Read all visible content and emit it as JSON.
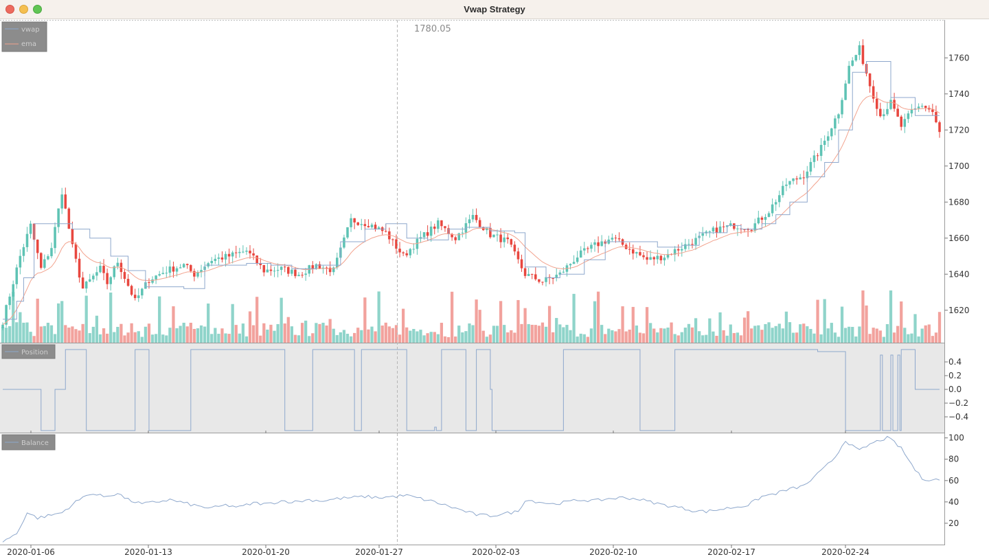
{
  "window": {
    "title": "Vwap Strategy",
    "buttons": [
      "close",
      "minimize",
      "maximize"
    ]
  },
  "crosshair": {
    "value_label": "1780.05",
    "x_date": "2020-01-27"
  },
  "colors": {
    "up_candle": "#5ec3b4",
    "down_candle": "#e8473f",
    "up_volume": "#8fd4ca",
    "down_volume": "#f2a29d",
    "vwap": "#8da7cc",
    "ema": "#f2a28d",
    "position": "#8da7cc",
    "balance": "#8da7cc",
    "legend_bg": "#8c8c8c",
    "position_bg": "#e8e8e8"
  },
  "chart_data": [
    {
      "type": "candlestick",
      "title": "",
      "legend": [
        "vwap",
        "ema"
      ],
      "legend_placement": "top-left",
      "ylim": [
        1602,
        1778
      ],
      "y_ticks": [
        "1620",
        "1640",
        "1660",
        "1680",
        "1700",
        "1720",
        "1740",
        "1760"
      ],
      "x_ticks": [
        "2020-01-06",
        "2020-01-13",
        "2020-01-20",
        "2020-01-27",
        "2020-02-03",
        "2020-02-10",
        "2020-02-17",
        "2020-02-24"
      ],
      "close_anchors": [
        [
          0,
          1614
        ],
        [
          5,
          1650
        ],
        [
          8,
          1667
        ],
        [
          11,
          1643
        ],
        [
          14,
          1655
        ],
        [
          17,
          1686
        ],
        [
          20,
          1655
        ],
        [
          23,
          1632
        ],
        [
          28,
          1643
        ],
        [
          30,
          1635
        ],
        [
          33,
          1647
        ],
        [
          38,
          1625
        ],
        [
          42,
          1637
        ],
        [
          47,
          1642
        ],
        [
          52,
          1645
        ],
        [
          55,
          1640
        ],
        [
          60,
          1648
        ],
        [
          65,
          1650
        ],
        [
          70,
          1653
        ],
        [
          75,
          1642
        ],
        [
          80,
          1643
        ],
        [
          85,
          1640
        ],
        [
          90,
          1645
        ],
        [
          95,
          1642
        ],
        [
          100,
          1670
        ],
        [
          105,
          1668
        ],
        [
          110,
          1663
        ],
        [
          115,
          1650
        ],
        [
          120,
          1660
        ],
        [
          125,
          1668
        ],
        [
          130,
          1660
        ],
        [
          135,
          1672
        ],
        [
          140,
          1662
        ],
        [
          145,
          1658
        ],
        [
          150,
          1640
        ],
        [
          155,
          1636
        ],
        [
          160,
          1640
        ],
        [
          165,
          1650
        ],
        [
          170,
          1656
        ],
        [
          175,
          1660
        ],
        [
          180,
          1654
        ],
        [
          185,
          1648
        ],
        [
          190,
          1650
        ],
        [
          195,
          1655
        ],
        [
          200,
          1660
        ],
        [
          205,
          1665
        ],
        [
          210,
          1667
        ],
        [
          215,
          1666
        ],
        [
          220,
          1675
        ],
        [
          225,
          1690
        ],
        [
          230,
          1695
        ],
        [
          235,
          1710
        ],
        [
          240,
          1730
        ],
        [
          243,
          1755
        ],
        [
          246,
          1765
        ],
        [
          249,
          1745
        ],
        [
          252,
          1728
        ],
        [
          255,
          1735
        ],
        [
          258,
          1722
        ],
        [
          261,
          1730
        ],
        [
          264,
          1734
        ],
        [
          267,
          1730
        ],
        [
          269,
          1718
        ]
      ],
      "vwap_steps": [
        [
          0,
          1615
        ],
        [
          4,
          1625
        ],
        [
          6,
          1638
        ],
        [
          9,
          1668
        ],
        [
          16,
          1668
        ],
        [
          20,
          1665
        ],
        [
          25,
          1660
        ],
        [
          31,
          1650
        ],
        [
          36,
          1642
        ],
        [
          41,
          1633
        ],
        [
          47,
          1633
        ],
        [
          52,
          1632
        ],
        [
          58,
          1645
        ],
        [
          63,
          1645
        ],
        [
          70,
          1646
        ],
        [
          77,
          1645
        ],
        [
          83,
          1643
        ],
        [
          90,
          1645
        ],
        [
          97,
          1658
        ],
        [
          104,
          1665
        ],
        [
          110,
          1668
        ],
        [
          116,
          1660
        ],
        [
          122,
          1659
        ],
        [
          128,
          1665
        ],
        [
          133,
          1666
        ],
        [
          140,
          1664
        ],
        [
          147,
          1663
        ],
        [
          150,
          1644
        ],
        [
          156,
          1638
        ],
        [
          160,
          1640
        ],
        [
          167,
          1648
        ],
        [
          173,
          1658
        ],
        [
          180,
          1658
        ],
        [
          188,
          1655
        ],
        [
          195,
          1656
        ],
        [
          200,
          1663
        ],
        [
          208,
          1667
        ],
        [
          212,
          1665
        ],
        [
          218,
          1668
        ],
        [
          222,
          1673
        ],
        [
          226,
          1680
        ],
        [
          231,
          1694
        ],
        [
          236,
          1702
        ],
        [
          240,
          1720
        ],
        [
          244,
          1752
        ],
        [
          248,
          1758
        ],
        [
          255,
          1738
        ],
        [
          262,
          1728
        ],
        [
          269,
          1728
        ]
      ],
      "volume_ylim": [
        0,
        100
      ]
    },
    {
      "type": "line",
      "title": "",
      "legend": [
        "Position"
      ],
      "legend_placement": "top-left",
      "ylim": [
        -0.62,
        0.62
      ],
      "y_ticks": [
        "0.4",
        "0.2",
        "0.0",
        "−0.2",
        "−0.4"
      ],
      "steps": [
        [
          0,
          0
        ],
        [
          11,
          -0.6
        ],
        [
          15,
          0
        ],
        [
          18,
          0.58
        ],
        [
          24,
          -0.6
        ],
        [
          38,
          0.58
        ],
        [
          42,
          -0.6
        ],
        [
          54,
          0.58
        ],
        [
          81,
          -0.6
        ],
        [
          89,
          0.58
        ],
        [
          101,
          -0.6
        ],
        [
          103,
          0.58
        ],
        [
          116,
          -0.6
        ],
        [
          124,
          -0.55
        ],
        [
          124.5,
          -0.6
        ],
        [
          126,
          0.58
        ],
        [
          133,
          -0.6
        ],
        [
          136,
          0.58
        ],
        [
          140,
          0
        ],
        [
          140.5,
          -0.6
        ],
        [
          161,
          0.58
        ],
        [
          183,
          -0.6
        ],
        [
          193,
          0.58
        ],
        [
          234,
          0.55
        ],
        [
          242,
          -0.6
        ],
        [
          252,
          0.5
        ],
        [
          252.6,
          -0.6
        ],
        [
          255,
          0.5
        ],
        [
          255.6,
          -0.6
        ],
        [
          257,
          0.5
        ],
        [
          257.6,
          -0.6
        ],
        [
          258,
          0.58
        ],
        [
          262,
          0
        ],
        [
          269,
          0
        ]
      ]
    },
    {
      "type": "line",
      "title": "",
      "legend": [
        "Balance"
      ],
      "legend_placement": "top-left",
      "ylim": [
        0,
        103
      ],
      "y_ticks": [
        "20",
        "40",
        "60",
        "80",
        "100"
      ],
      "anchors": [
        [
          0,
          3
        ],
        [
          4,
          10
        ],
        [
          7,
          30
        ],
        [
          10,
          25
        ],
        [
          13,
          27
        ],
        [
          17,
          30
        ],
        [
          21,
          40
        ],
        [
          25,
          48
        ],
        [
          29,
          45
        ],
        [
          33,
          48
        ],
        [
          36,
          42
        ],
        [
          40,
          38
        ],
        [
          44,
          40
        ],
        [
          48,
          42
        ],
        [
          52,
          39
        ],
        [
          56,
          36
        ],
        [
          60,
          34
        ],
        [
          64,
          37
        ],
        [
          68,
          35
        ],
        [
          72,
          39
        ],
        [
          76,
          38
        ],
        [
          80,
          41
        ],
        [
          84,
          40
        ],
        [
          88,
          42
        ],
        [
          92,
          41
        ],
        [
          96,
          43
        ],
        [
          100,
          44
        ],
        [
          104,
          45
        ],
        [
          108,
          44
        ],
        [
          112,
          45
        ],
        [
          116,
          46
        ],
        [
          120,
          43
        ],
        [
          124,
          40
        ],
        [
          128,
          36
        ],
        [
          132,
          32
        ],
        [
          136,
          28
        ],
        [
          140,
          27
        ],
        [
          144,
          29
        ],
        [
          148,
          31
        ],
        [
          150,
          42
        ],
        [
          154,
          40
        ],
        [
          158,
          38
        ],
        [
          162,
          40
        ],
        [
          166,
          42
        ],
        [
          170,
          41
        ],
        [
          174,
          43
        ],
        [
          178,
          44
        ],
        [
          182,
          43
        ],
        [
          186,
          40
        ],
        [
          190,
          37
        ],
        [
          194,
          35
        ],
        [
          198,
          32
        ],
        [
          202,
          31
        ],
        [
          206,
          33
        ],
        [
          210,
          35
        ],
        [
          214,
          37
        ],
        [
          218,
          45
        ],
        [
          222,
          48
        ],
        [
          226,
          52
        ],
        [
          230,
          55
        ],
        [
          233,
          63
        ],
        [
          236,
          72
        ],
        [
          239,
          82
        ],
        [
          242,
          98
        ],
        [
          244,
          92
        ],
        [
          246,
          88
        ],
        [
          249,
          94
        ],
        [
          252,
          98
        ],
        [
          254,
          100
        ],
        [
          256,
          96
        ],
        [
          258,
          90
        ],
        [
          260,
          80
        ],
        [
          262,
          70
        ],
        [
          264,
          62
        ],
        [
          266,
          61
        ],
        [
          269,
          61
        ]
      ]
    }
  ]
}
